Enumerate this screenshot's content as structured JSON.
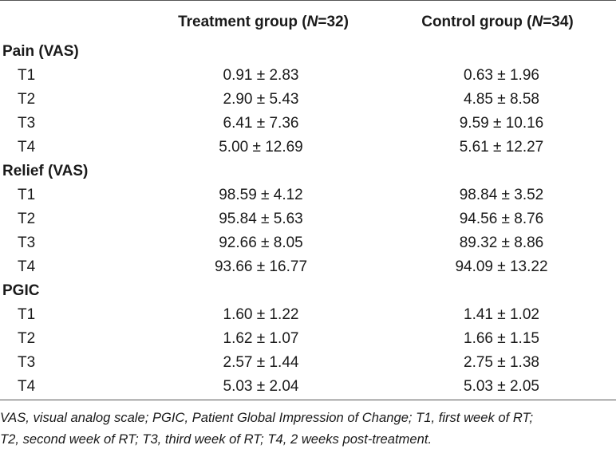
{
  "table": {
    "headers": {
      "treatment": {
        "prefix": "Treatment group (",
        "n_italic": "N",
        "suffix": "=32)"
      },
      "control": {
        "prefix": "Control group (",
        "n_italic": "N",
        "suffix": "=34)"
      }
    },
    "sections": [
      {
        "title": "Pain (VAS)",
        "rows": [
          {
            "label": "T1",
            "treatment": "0.91 ± 2.83",
            "control": "0.63 ± 1.96"
          },
          {
            "label": "T2",
            "treatment": "2.90 ± 5.43",
            "control": "4.85 ± 8.58"
          },
          {
            "label": "T3",
            "treatment": "6.41 ± 7.36",
            "control": "9.59 ± 10.16"
          },
          {
            "label": "T4",
            "treatment": "5.00 ± 12.69",
            "control": "5.61 ± 12.27"
          }
        ]
      },
      {
        "title": "Relief (VAS)",
        "rows": [
          {
            "label": "T1",
            "treatment": "98.59 ± 4.12",
            "control": "98.84 ± 3.52"
          },
          {
            "label": "T2",
            "treatment": "95.84 ± 5.63",
            "control": "94.56 ± 8.76"
          },
          {
            "label": "T3",
            "treatment": "92.66 ± 8.05",
            "control": "89.32 ± 8.86"
          },
          {
            "label": "T4",
            "treatment": "93.66 ± 16.77",
            "control": "94.09 ± 13.22"
          }
        ]
      },
      {
        "title": "PGIC",
        "rows": [
          {
            "label": "T1",
            "treatment": "1.60 ± 1.22",
            "control": "1.41 ± 1.02"
          },
          {
            "label": "T2",
            "treatment": "1.62 ± 1.07",
            "control": "1.66 ± 1.15"
          },
          {
            "label": "T3",
            "treatment": "2.57 ± 1.44",
            "control": "2.75 ± 1.38"
          },
          {
            "label": "T4",
            "treatment": "5.03 ± 2.04",
            "control": "5.03 ± 2.05"
          }
        ]
      }
    ]
  },
  "footnote": {
    "line1": "VAS, visual analog scale; PGIC, Patient Global Impression of Change; T1, first week of RT;",
    "line2": "T2, second week of RT; T3, third week of RT; T4, 2 weeks post-treatment."
  }
}
